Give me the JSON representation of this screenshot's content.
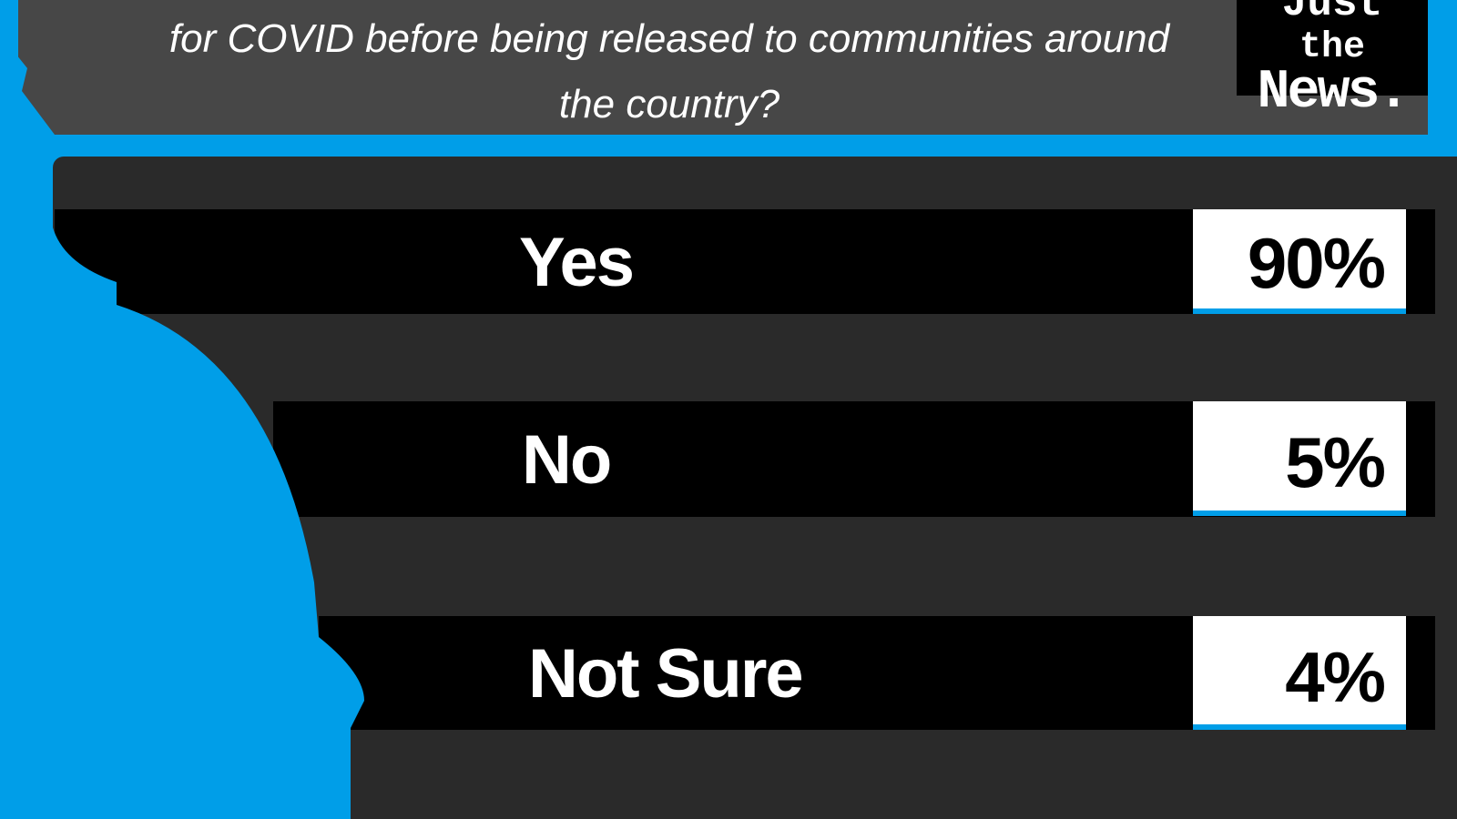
{
  "question": {
    "lines": [
      "for COVID before being released to communities around",
      "the country?"
    ]
  },
  "logo": {
    "line1": "Just",
    "line2": "the",
    "line3": "News."
  },
  "colors": {
    "accent": "#009ee8",
    "header": "#474747",
    "panel": "#2a2a2a",
    "row": "#000000"
  },
  "chart_data": {
    "type": "bar",
    "categories": [
      "Yes",
      "No",
      "Not Sure"
    ],
    "values": [
      90,
      5,
      4
    ],
    "value_labels": [
      "90%",
      "5%",
      "4%"
    ]
  }
}
